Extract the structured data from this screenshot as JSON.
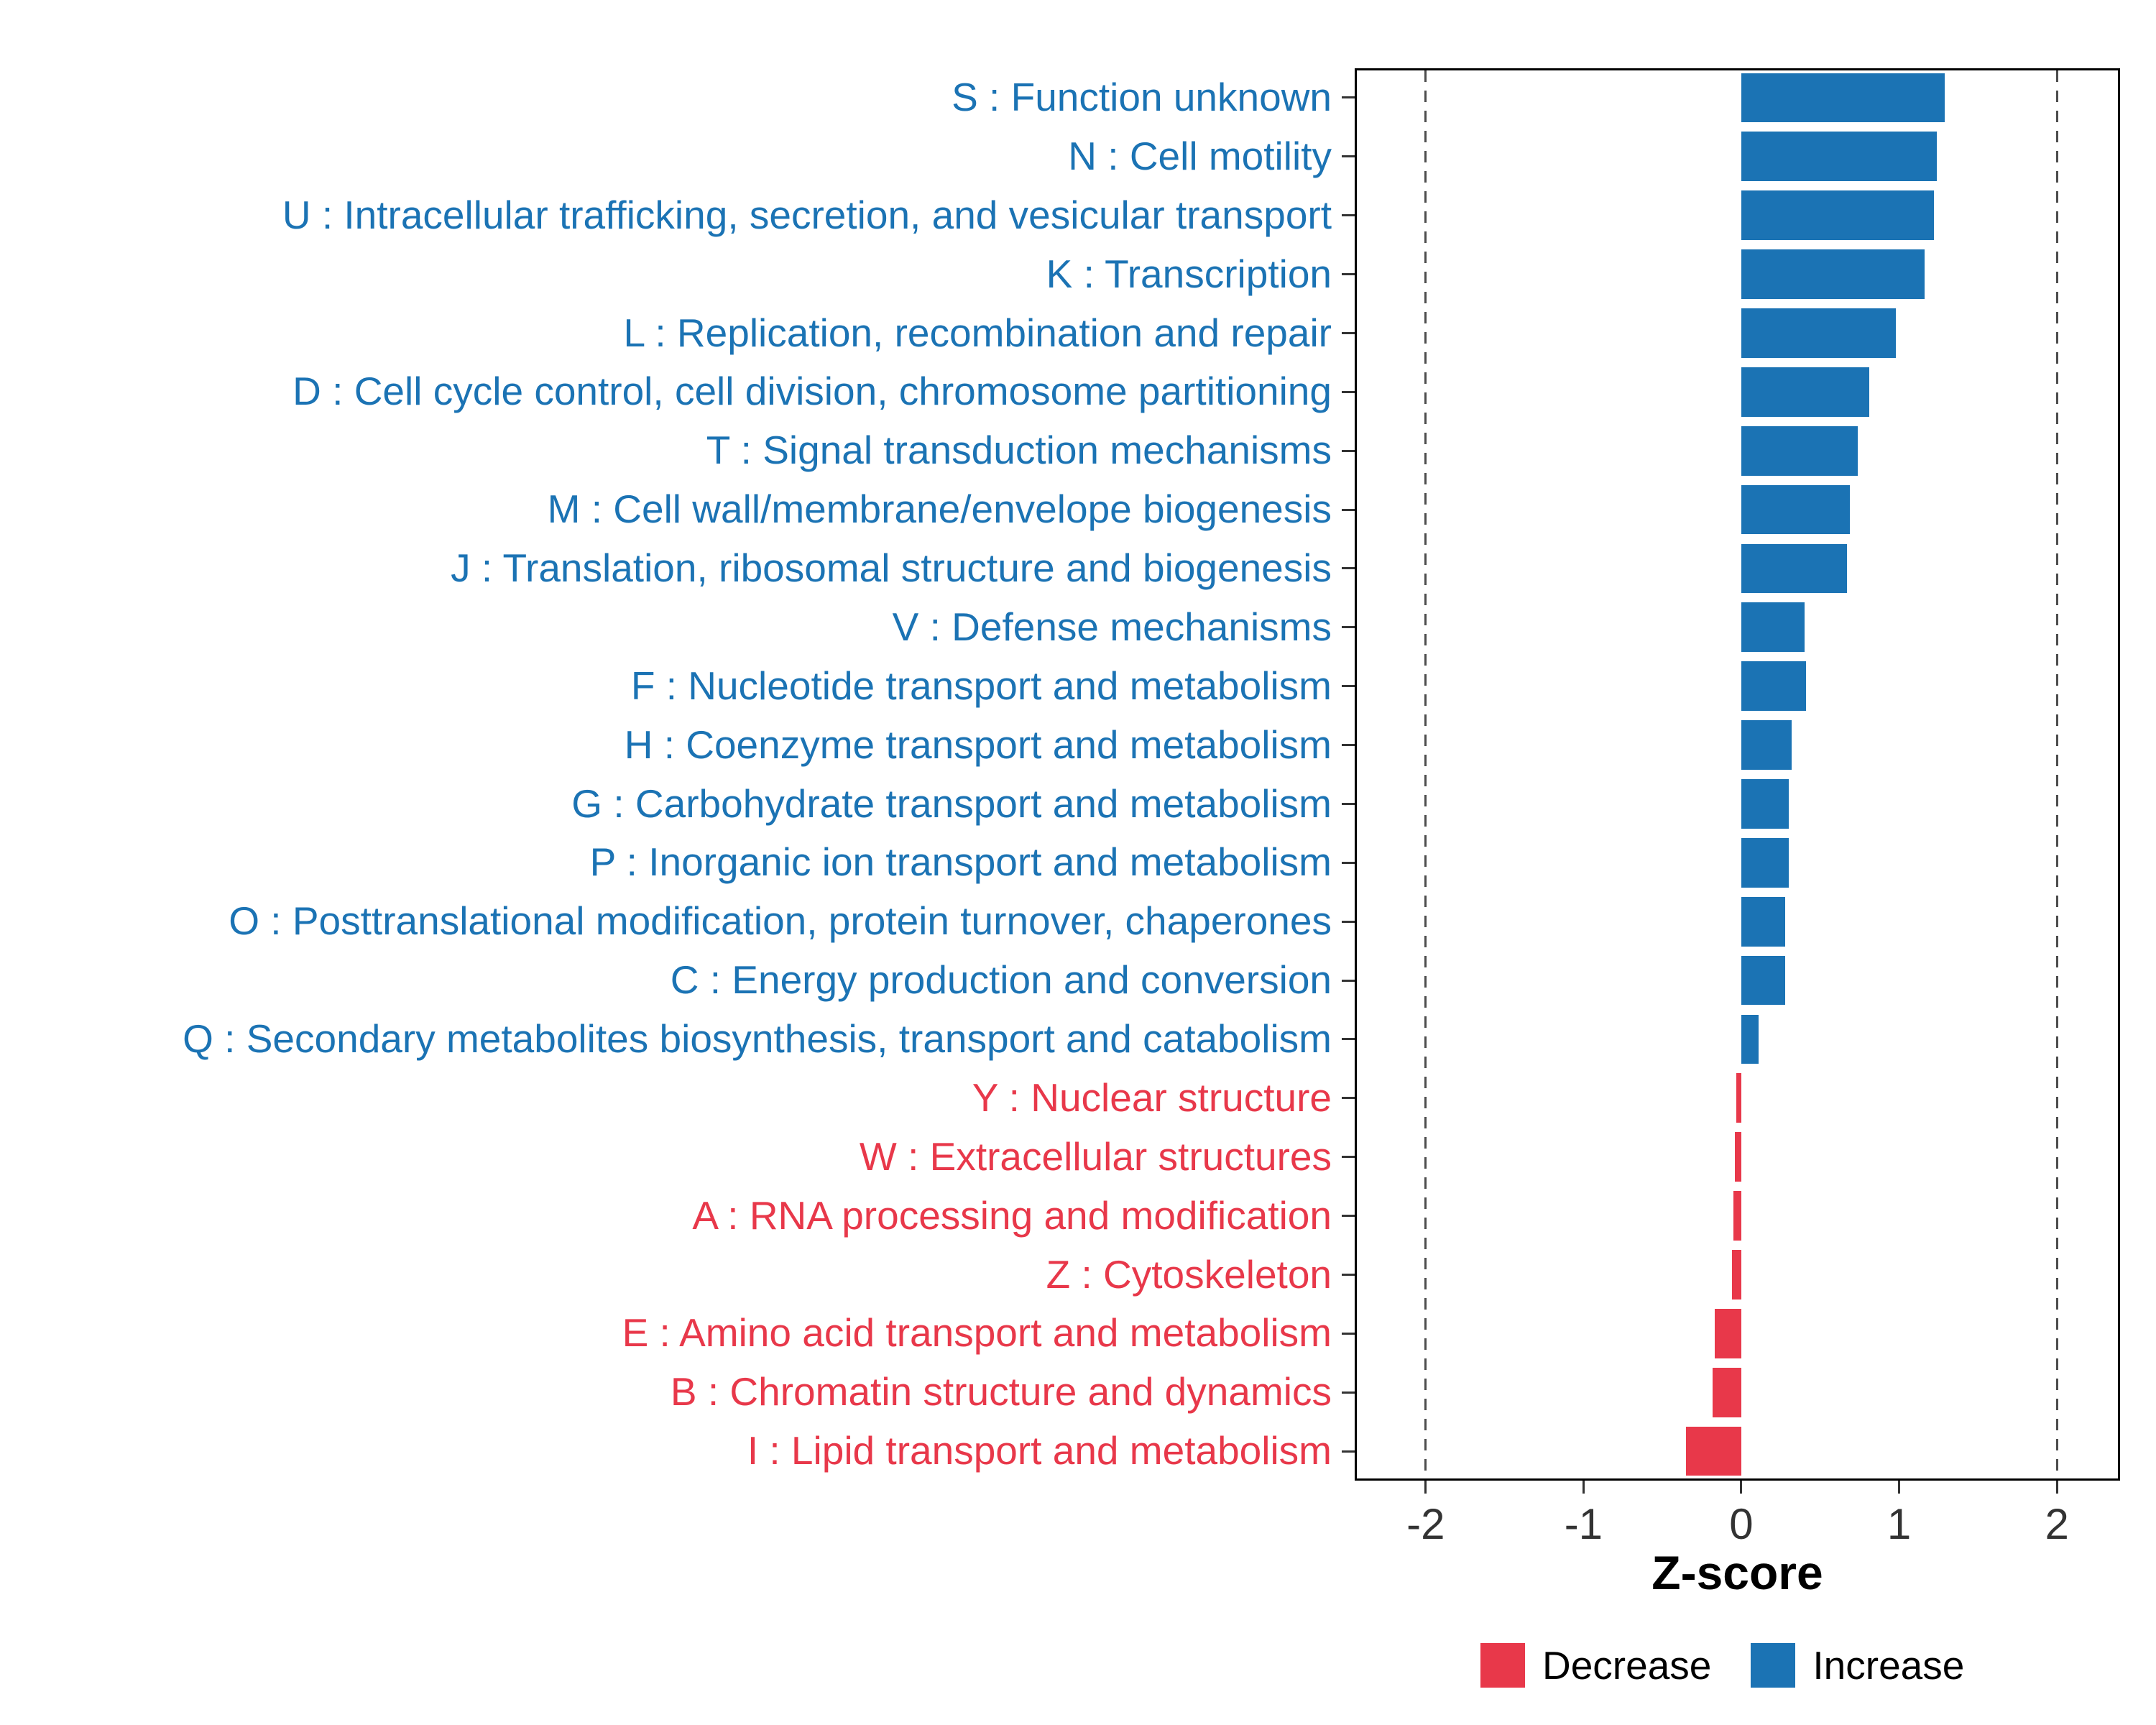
{
  "chart_data": {
    "type": "bar",
    "orientation": "horizontal",
    "title": "",
    "xlabel": "Z-score",
    "xlim": [
      -2.45,
      2.4
    ],
    "x_ticks": [
      -2,
      -1,
      0,
      1,
      2
    ],
    "reference_lines": [
      -2,
      2
    ],
    "grid": false,
    "legend_position": "bottom-right",
    "colors": {
      "increase": "#1B73B4",
      "decrease": "#E8384A",
      "reference": "#4D4D4D"
    },
    "legend": [
      {
        "label": "Decrease",
        "color": "#E8384A"
      },
      {
        "label": "Increase",
        "color": "#1B73B4"
      }
    ],
    "rows": [
      {
        "label": "S : Function unknown",
        "value": 1.29,
        "group": "increase"
      },
      {
        "label": "N : Cell motility",
        "value": 1.24,
        "group": "increase"
      },
      {
        "label": "U : Intracellular trafficking, secretion, and vesicular transport",
        "value": 1.22,
        "group": "increase"
      },
      {
        "label": "K : Transcription",
        "value": 1.16,
        "group": "increase"
      },
      {
        "label": "L : Replication, recombination and repair",
        "value": 0.98,
        "group": "increase"
      },
      {
        "label": "D : Cell cycle control, cell division, chromosome partitioning",
        "value": 0.81,
        "group": "increase"
      },
      {
        "label": "T : Signal transduction mechanisms",
        "value": 0.74,
        "group": "increase"
      },
      {
        "label": "M : Cell wall/membrane/envelope biogenesis",
        "value": 0.69,
        "group": "increase"
      },
      {
        "label": "J : Translation, ribosomal structure and biogenesis",
        "value": 0.67,
        "group": "increase"
      },
      {
        "label": "V : Defense mechanisms",
        "value": 0.4,
        "group": "increase"
      },
      {
        "label": "F : Nucleotide transport and metabolism",
        "value": 0.41,
        "group": "increase"
      },
      {
        "label": "H : Coenzyme transport and metabolism",
        "value": 0.32,
        "group": "increase"
      },
      {
        "label": "G : Carbohydrate transport and metabolism",
        "value": 0.3,
        "group": "increase"
      },
      {
        "label": "P : Inorganic ion transport and metabolism",
        "value": 0.3,
        "group": "increase"
      },
      {
        "label": "O : Posttranslational modification, protein turnover, chaperones",
        "value": 0.28,
        "group": "increase"
      },
      {
        "label": "C : Energy production and conversion",
        "value": 0.28,
        "group": "increase"
      },
      {
        "label": "Q : Secondary metabolites biosynthesis, transport and catabolism",
        "value": 0.11,
        "group": "increase"
      },
      {
        "label": "Y : Nuclear structure",
        "value": -0.03,
        "group": "decrease"
      },
      {
        "label": "W : Extracellular structures",
        "value": -0.04,
        "group": "decrease"
      },
      {
        "label": "A : RNA processing and modification",
        "value": -0.05,
        "group": "decrease"
      },
      {
        "label": "Z : Cytoskeleton",
        "value": -0.06,
        "group": "decrease"
      },
      {
        "label": "E : Amino acid transport and metabolism",
        "value": -0.17,
        "group": "decrease"
      },
      {
        "label": "B : Chromatin structure and dynamics",
        "value": -0.18,
        "group": "decrease"
      },
      {
        "label": "I : Lipid transport and metabolism",
        "value": -0.35,
        "group": "decrease"
      }
    ]
  }
}
